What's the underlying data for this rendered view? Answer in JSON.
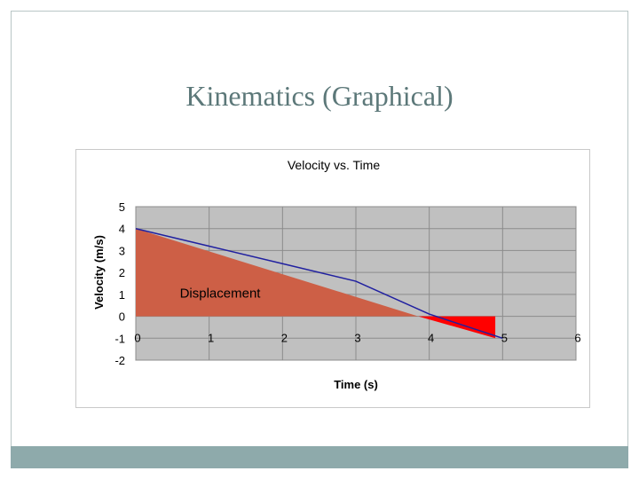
{
  "slide": {
    "title": "Kinematics (Graphical)"
  },
  "colors": {
    "plot_background": "#c0c0c0",
    "gridline": "#8c8c8c",
    "positive_area": "#cd5f46",
    "negative_area": "#ff0000",
    "line": "#2020a0",
    "footer": "#8eaaab",
    "title": "#5c7879"
  },
  "chart_data": {
    "type": "line",
    "title": "Velocity vs. Time",
    "xlabel": "Time (s)",
    "ylabel": "Velocity (m/s)",
    "xlim": [
      0,
      6
    ],
    "ylim": [
      -2,
      5
    ],
    "xticks": [
      "0",
      "1",
      "2",
      "3",
      "4",
      "5",
      "6"
    ],
    "yticks": [
      "5",
      "4",
      "3",
      "2",
      "1",
      "0",
      "-1",
      "-2"
    ],
    "grid": true,
    "series": [
      {
        "x": [
          0,
          1,
          2,
          3,
          4,
          5
        ],
        "y": [
          4,
          3.2,
          2.4,
          1.6,
          0.1,
          -1
        ]
      }
    ],
    "shaded_regions": [
      {
        "points": [
          [
            0,
            0
          ],
          [
            0,
            4
          ],
          [
            3.85,
            0
          ]
        ]
      },
      {
        "points": [
          [
            3.85,
            0
          ],
          [
            4.9,
            0
          ],
          [
            4.9,
            -1
          ]
        ]
      }
    ],
    "annotations": [
      {
        "text": "Displacement",
        "x": 0.6,
        "y": 0.85
      }
    ]
  }
}
